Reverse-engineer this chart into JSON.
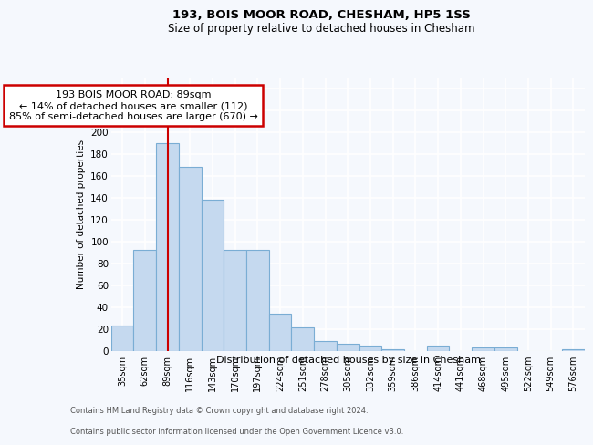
{
  "title1": "193, BOIS MOOR ROAD, CHESHAM, HP5 1SS",
  "title2": "Size of property relative to detached houses in Chesham",
  "xlabel": "Distribution of detached houses by size in Chesham",
  "ylabel": "Number of detached properties",
  "footer1": "Contains HM Land Registry data © Crown copyright and database right 2024.",
  "footer2": "Contains public sector information licensed under the Open Government Licence v3.0.",
  "annotation_line1": "193 BOIS MOOR ROAD: 89sqm",
  "annotation_line2": "← 14% of detached houses are smaller (112)",
  "annotation_line3": "85% of semi-detached houses are larger (670) →",
  "property_label": "89sqm",
  "categories": [
    "35sqm",
    "62sqm",
    "89sqm",
    "116sqm",
    "143sqm",
    "170sqm",
    "197sqm",
    "224sqm",
    "251sqm",
    "278sqm",
    "305sqm",
    "332sqm",
    "359sqm",
    "386sqm",
    "414sqm",
    "441sqm",
    "468sqm",
    "495sqm",
    "522sqm",
    "549sqm",
    "576sqm"
  ],
  "values": [
    23,
    92,
    190,
    168,
    138,
    92,
    92,
    34,
    21,
    9,
    6,
    5,
    1,
    0,
    5,
    0,
    3,
    3,
    0,
    0,
    1
  ],
  "bar_color": "#c5d9ef",
  "bar_edge_color": "#7aadd4",
  "highlight_line_color": "#cc0000",
  "annotation_box_edge": "#cc0000",
  "bg_color": "#f5f8fd",
  "plot_bg_color": "#f5f8fd",
  "grid_color": "#ffffff",
  "ylim": [
    0,
    250
  ],
  "yticks": [
    0,
    20,
    40,
    60,
    80,
    100,
    120,
    140,
    160,
    180,
    200,
    220,
    240
  ]
}
